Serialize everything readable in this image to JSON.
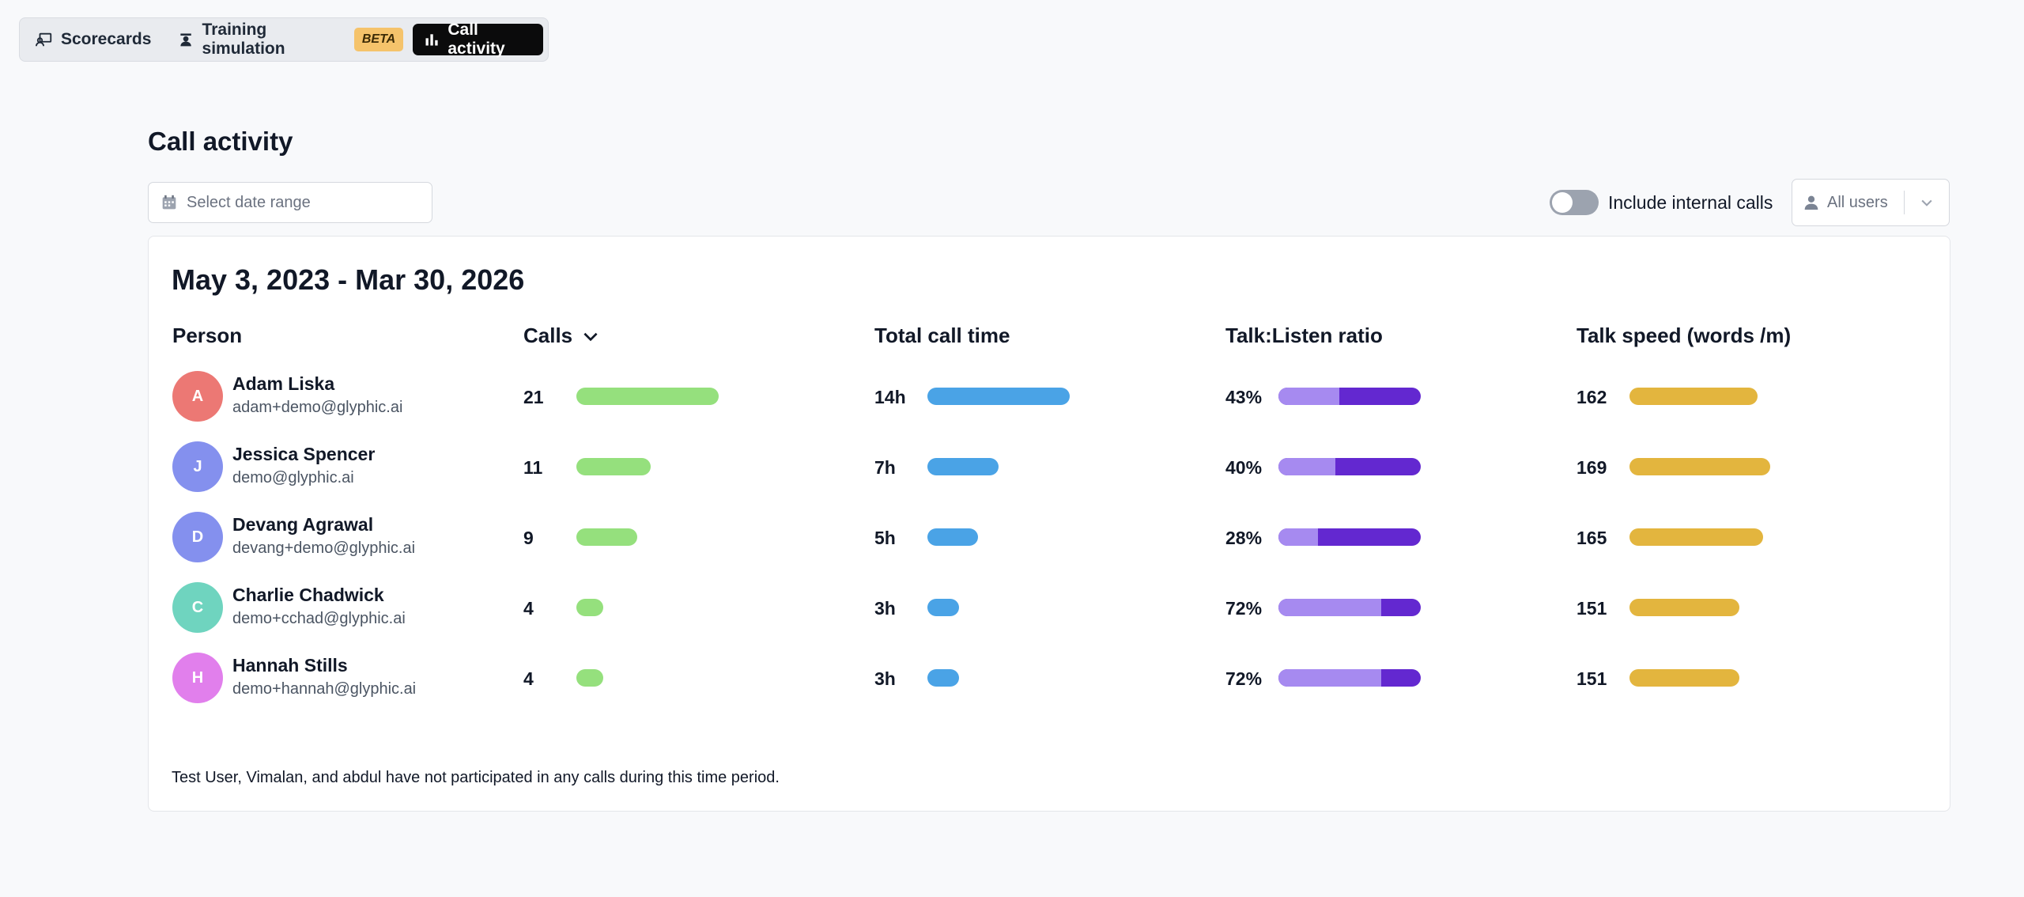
{
  "tabs": [
    {
      "label": "Scorecards",
      "icon": "scorecard-icon",
      "active": false
    },
    {
      "label": "Training simulation",
      "icon": "training-icon",
      "active": false,
      "badge": "BETA"
    },
    {
      "label": "Call activity",
      "icon": "bar-chart-icon",
      "active": true
    }
  ],
  "page": {
    "title": "Call activity",
    "date_placeholder": "Select date range",
    "toggle_label": "Include internal calls",
    "toggle_on": false,
    "user_filter": "All users"
  },
  "card": {
    "range_title": "May 3, 2023 - Mar 30, 2026",
    "columns": {
      "person": "Person",
      "calls": "Calls",
      "total_time": "Total call time",
      "ratio": "Talk:Listen ratio",
      "speed": "Talk speed (words /m)"
    },
    "footnote": "Test User, Vimalan, and abdul have not participated in any calls during this time period."
  },
  "colors": {
    "calls_bar": "#95e07d",
    "time_bar": "#4aa3e6",
    "talk": "#a68af0",
    "listen": "#6328d0",
    "speed_bar": "#e3b53e"
  },
  "rows": [
    {
      "initial": "A",
      "avatar_color": "#ec7874",
      "name": "Adam Liska",
      "email": "adam+demo@glyphic.ai",
      "calls": "21",
      "calls_value": 21,
      "time": "14h",
      "time_value": 14,
      "ratio": "43%",
      "ratio_value": 43,
      "speed": "162",
      "speed_value": 162
    },
    {
      "initial": "J",
      "avatar_color": "#8490ee",
      "name": "Jessica Spencer",
      "email": "demo@glyphic.ai",
      "calls": "11",
      "calls_value": 11,
      "time": "7h",
      "time_value": 7,
      "ratio": "40%",
      "ratio_value": 40,
      "speed": "169",
      "speed_value": 169
    },
    {
      "initial": "D",
      "avatar_color": "#8490ee",
      "name": "Devang Agrawal",
      "email": "devang+demo@glyphic.ai",
      "calls": "9",
      "calls_value": 9,
      "time": "5h",
      "time_value": 5,
      "ratio": "28%",
      "ratio_value": 28,
      "speed": "165",
      "speed_value": 165
    },
    {
      "initial": "C",
      "avatar_color": "#6fd4bf",
      "name": "Charlie Chadwick",
      "email": "demo+cchad@glyphic.ai",
      "calls": "4",
      "calls_value": 4,
      "time": "3h",
      "time_value": 3,
      "ratio": "72%",
      "ratio_value": 72,
      "speed": "151",
      "speed_value": 151
    },
    {
      "initial": "H",
      "avatar_color": "#e17fec",
      "name": "Hannah Stills",
      "email": "demo+hannah@glyphic.ai",
      "calls": "4",
      "calls_value": 4,
      "time": "3h",
      "time_value": 3,
      "ratio": "72%",
      "ratio_value": 72,
      "speed": "151",
      "speed_value": 151
    }
  ]
}
